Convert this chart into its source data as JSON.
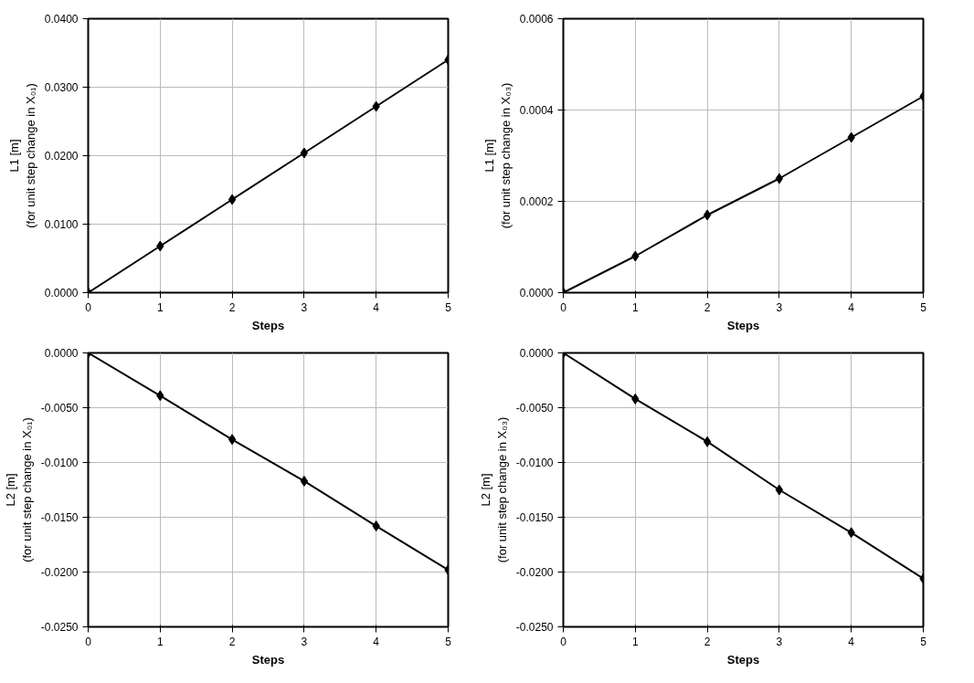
{
  "chart_data": [
    {
      "type": "line",
      "xlabel": "Steps",
      "ylabel": "L1 [m]\n(for unit step change in X₀₁)",
      "x": [
        0,
        1,
        2,
        3,
        4,
        5
      ],
      "values": [
        0,
        0.0068,
        0.0136,
        0.0204,
        0.0272,
        0.034
      ],
      "color": "#000000",
      "marker": "diamond",
      "line_style": "solid",
      "grid": true,
      "xlim": [
        0,
        5
      ],
      "xticks": [
        0,
        1,
        2,
        3,
        4,
        5
      ],
      "ylim": [
        0,
        0.04
      ],
      "yticks": [
        {
          "value": 0,
          "label": "0.0000"
        },
        {
          "value": 0.01,
          "label": "0.0100"
        },
        {
          "value": 0.02,
          "label": "0.0200"
        },
        {
          "value": 0.03,
          "label": "0.0300"
        },
        {
          "value": 0.04,
          "label": "0.0400"
        }
      ]
    },
    {
      "type": "line",
      "xlabel": "Steps",
      "ylabel": "L1 [m]\n(for unit step change in X₀₃)",
      "x": [
        0,
        1,
        2,
        3,
        4,
        5
      ],
      "values": [
        0,
        8e-05,
        0.00017,
        0.00025,
        0.00034,
        0.00043
      ],
      "color": "#000000",
      "marker": "diamond",
      "line_style": "solid",
      "grid": true,
      "xlim": [
        0,
        5
      ],
      "xticks": [
        0,
        1,
        2,
        3,
        4,
        5
      ],
      "ylim": [
        0,
        0.0006
      ],
      "yticks": [
        {
          "value": 0,
          "label": "0.0000"
        },
        {
          "value": 0.0002,
          "label": "0.0002"
        },
        {
          "value": 0.0004,
          "label": "0.0004"
        },
        {
          "value": 0.0006,
          "label": "0.0006"
        }
      ]
    },
    {
      "type": "line",
      "xlabel": "Steps",
      "ylabel": "L2 [m]\n(for unit step change in X₀₁)",
      "x": [
        0,
        1,
        2,
        3,
        4,
        5
      ],
      "values": [
        0,
        -0.0039,
        -0.0079,
        -0.0117,
        -0.0158,
        -0.0198
      ],
      "color": "#000000",
      "marker": "diamond",
      "line_style": "solid",
      "grid": true,
      "xlim": [
        0,
        5
      ],
      "xticks": [
        0,
        1,
        2,
        3,
        4,
        5
      ],
      "ylim": [
        -0.025,
        0
      ],
      "yticks": [
        {
          "value": 0,
          "label": "0.0000"
        },
        {
          "value": -0.005,
          "label": "-0.0050"
        },
        {
          "value": -0.01,
          "label": "-0.0100"
        },
        {
          "value": -0.015,
          "label": "-0.0150"
        },
        {
          "value": -0.02,
          "label": "-0.0200"
        },
        {
          "value": -0.025,
          "label": "-0.0250"
        }
      ]
    },
    {
      "type": "line",
      "xlabel": "Steps",
      "ylabel": "L2 [m]\n(for unit step change in X₀₃)",
      "x": [
        0,
        1,
        2,
        3,
        4,
        5
      ],
      "values": [
        0,
        -0.0042,
        -0.0081,
        -0.0125,
        -0.0164,
        -0.0206
      ],
      "color": "#000000",
      "marker": "diamond",
      "line_style": "solid",
      "grid": true,
      "xlim": [
        0,
        5
      ],
      "xticks": [
        0,
        1,
        2,
        3,
        4,
        5
      ],
      "ylim": [
        -0.025,
        0
      ],
      "yticks": [
        {
          "value": 0,
          "label": "0.0000"
        },
        {
          "value": -0.005,
          "label": "-0.0050"
        },
        {
          "value": -0.01,
          "label": "-0.0100"
        },
        {
          "value": -0.015,
          "label": "-0.0150"
        },
        {
          "value": -0.02,
          "label": "-0.0200"
        },
        {
          "value": -0.025,
          "label": "-0.0250"
        }
      ]
    }
  ]
}
